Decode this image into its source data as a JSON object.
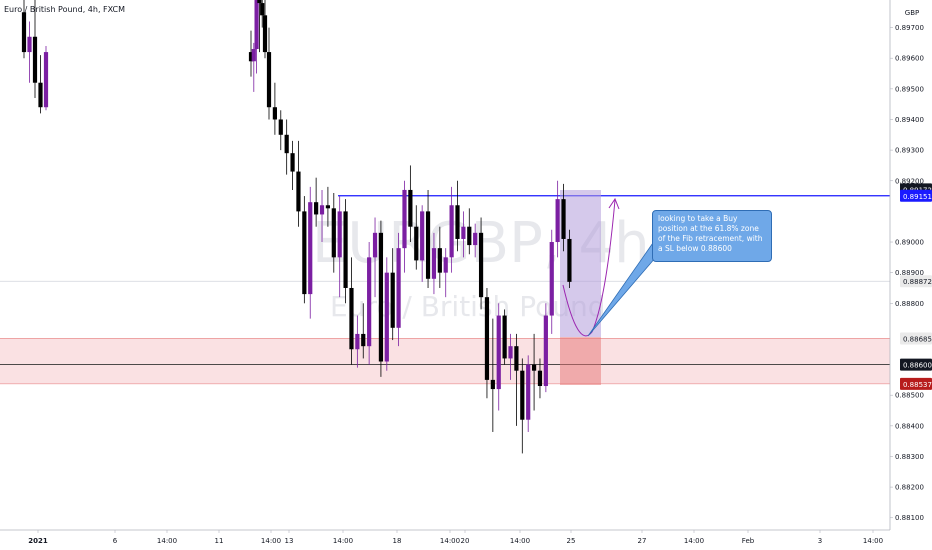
{
  "header": {
    "symbol_line": "Euro / British Pound, 4h, FXCM"
  },
  "watermark": {
    "ticker": "EURGBP, 4h",
    "name": "Euro / British Pound"
  },
  "currency_label": "GBP",
  "annotation": {
    "text": "looking to take a Buy position at the 61.8% zone of the Fib retracement, with a SL below 0.88600"
  },
  "colors": {
    "bull_candle": "#7b1fa2",
    "bear_candle": "#000000",
    "resistance_line": "#1a1aff",
    "support_zone": "#f8d7da",
    "stop_zone": "#e57373",
    "target_zone": "#b39ddb",
    "callout_bg": "#6fa8e8"
  },
  "chart_data": {
    "type": "candlestick",
    "timeframe": "4h",
    "y_axis": {
      "ylim": [
        0.8806,
        0.8979
      ],
      "ticks": [
        "0.89700",
        "0.89600",
        "0.89500",
        "0.89400",
        "0.89300",
        "0.89200",
        "0.89000",
        "0.88900",
        "0.88800",
        "0.88500",
        "0.88400",
        "0.88300",
        "0.88200",
        "0.88100"
      ]
    },
    "x_axis": {
      "ticks": [
        "2021",
        "6",
        "14:00",
        "11",
        "14:00",
        "13",
        "14:00",
        "18",
        "14:00",
        "20",
        "14:00",
        "25",
        "27",
        "14:00",
        "Feb",
        "3",
        "14:00"
      ]
    },
    "price_labels": [
      {
        "value": "0.89172",
        "style": "dark"
      },
      {
        "value": "0.89151",
        "style": "blue"
      },
      {
        "value": "0.88872",
        "style": "light"
      },
      {
        "value": "0.88685",
        "style": "light"
      },
      {
        "value": "0.88600",
        "style": "dark"
      },
      {
        "value": "0.88537",
        "style": "red"
      }
    ],
    "levels": {
      "resistance": 0.89151,
      "last_price": 0.88872,
      "zone_top": 0.88685,
      "zone_mid": 0.886,
      "zone_bottom": 0.88537
    },
    "candles": [
      {
        "o": 0.8975,
        "h": 0.8982,
        "l": 0.896,
        "c": 0.8962
      },
      {
        "o": 0.8962,
        "h": 0.8972,
        "l": 0.8952,
        "c": 0.8967
      },
      {
        "o": 0.8967,
        "h": 0.8982,
        "l": 0.8947,
        "c": 0.8952
      },
      {
        "o": 0.8952,
        "h": 0.8961,
        "l": 0.8942,
        "c": 0.8944
      },
      {
        "o": 0.8944,
        "h": 0.8964,
        "l": 0.8943,
        "c": 0.8962
      },
      {
        "o": 0.8962,
        "h": 0.8969,
        "l": 0.8954,
        "c": 0.8959
      },
      {
        "o": 0.8959,
        "h": 0.8965,
        "l": 0.8949,
        "c": 0.8963
      },
      {
        "o": 0.8963,
        "h": 0.8982,
        "l": 0.8955,
        "c": 0.898
      },
      {
        "o": 0.898,
        "h": 0.8982,
        "l": 0.8962,
        "c": 0.8978
      },
      {
        "o": 0.8978,
        "h": 0.8982,
        "l": 0.897,
        "c": 0.8974
      },
      {
        "o": 0.8974,
        "h": 0.898,
        "l": 0.896,
        "c": 0.8962
      },
      {
        "o": 0.8962,
        "h": 0.897,
        "l": 0.894,
        "c": 0.8944
      },
      {
        "o": 0.8944,
        "h": 0.8952,
        "l": 0.8935,
        "c": 0.894
      },
      {
        "o": 0.894,
        "h": 0.8943,
        "l": 0.893,
        "c": 0.8935
      },
      {
        "o": 0.8935,
        "h": 0.894,
        "l": 0.8922,
        "c": 0.8929
      },
      {
        "o": 0.8929,
        "h": 0.8933,
        "l": 0.8917,
        "c": 0.8923
      },
      {
        "o": 0.8923,
        "h": 0.8933,
        "l": 0.8905,
        "c": 0.891
      },
      {
        "o": 0.891,
        "h": 0.8915,
        "l": 0.888,
        "c": 0.8883
      },
      {
        "o": 0.8883,
        "h": 0.8918,
        "l": 0.8875,
        "c": 0.8913
      },
      {
        "o": 0.8913,
        "h": 0.8921,
        "l": 0.8905,
        "c": 0.8909
      },
      {
        "o": 0.8909,
        "h": 0.8917,
        "l": 0.89,
        "c": 0.8912
      },
      {
        "o": 0.8912,
        "h": 0.8918,
        "l": 0.8905,
        "c": 0.8911
      },
      {
        "o": 0.8911,
        "h": 0.8916,
        "l": 0.889,
        "c": 0.8895
      },
      {
        "o": 0.8895,
        "h": 0.8915,
        "l": 0.8882,
        "c": 0.891
      },
      {
        "o": 0.891,
        "h": 0.8914,
        "l": 0.888,
        "c": 0.8885
      },
      {
        "o": 0.8885,
        "h": 0.8895,
        "l": 0.886,
        "c": 0.8865
      },
      {
        "o": 0.8865,
        "h": 0.8876,
        "l": 0.8859,
        "c": 0.887
      },
      {
        "o": 0.887,
        "h": 0.888,
        "l": 0.8862,
        "c": 0.8866
      },
      {
        "o": 0.8866,
        "h": 0.89,
        "l": 0.886,
        "c": 0.8895
      },
      {
        "o": 0.8895,
        "h": 0.8908,
        "l": 0.8882,
        "c": 0.8903
      },
      {
        "o": 0.8903,
        "h": 0.8907,
        "l": 0.8856,
        "c": 0.8861
      },
      {
        "o": 0.8861,
        "h": 0.8895,
        "l": 0.8858,
        "c": 0.889
      },
      {
        "o": 0.889,
        "h": 0.8898,
        "l": 0.8868,
        "c": 0.8872
      },
      {
        "o": 0.8872,
        "h": 0.8903,
        "l": 0.8866,
        "c": 0.8898
      },
      {
        "o": 0.8898,
        "h": 0.892,
        "l": 0.889,
        "c": 0.8917
      },
      {
        "o": 0.8917,
        "h": 0.8925,
        "l": 0.89,
        "c": 0.8905
      },
      {
        "o": 0.8905,
        "h": 0.8912,
        "l": 0.8891,
        "c": 0.8894
      },
      {
        "o": 0.8894,
        "h": 0.8912,
        "l": 0.8887,
        "c": 0.891
      },
      {
        "o": 0.891,
        "h": 0.8917,
        "l": 0.8885,
        "c": 0.8888
      },
      {
        "o": 0.8888,
        "h": 0.8903,
        "l": 0.8883,
        "c": 0.8898
      },
      {
        "o": 0.8898,
        "h": 0.8905,
        "l": 0.8885,
        "c": 0.889
      },
      {
        "o": 0.889,
        "h": 0.8898,
        "l": 0.8882,
        "c": 0.8895
      },
      {
        "o": 0.8895,
        "h": 0.8918,
        "l": 0.889,
        "c": 0.8912
      },
      {
        "o": 0.8912,
        "h": 0.892,
        "l": 0.8897,
        "c": 0.8901
      },
      {
        "o": 0.8901,
        "h": 0.891,
        "l": 0.8895,
        "c": 0.8905
      },
      {
        "o": 0.8905,
        "h": 0.8911,
        "l": 0.8896,
        "c": 0.8899
      },
      {
        "o": 0.8899,
        "h": 0.8906,
        "l": 0.8895,
        "c": 0.8903
      },
      {
        "o": 0.8903,
        "h": 0.8908,
        "l": 0.8878,
        "c": 0.8882
      },
      {
        "o": 0.8882,
        "h": 0.8885,
        "l": 0.8849,
        "c": 0.8855
      },
      {
        "o": 0.8855,
        "h": 0.8875,
        "l": 0.8838,
        "c": 0.8852
      },
      {
        "o": 0.8852,
        "h": 0.888,
        "l": 0.8845,
        "c": 0.8876
      },
      {
        "o": 0.8876,
        "h": 0.8878,
        "l": 0.886,
        "c": 0.8862
      },
      {
        "o": 0.8862,
        "h": 0.887,
        "l": 0.8855,
        "c": 0.8866
      },
      {
        "o": 0.8866,
        "h": 0.887,
        "l": 0.884,
        "c": 0.8858
      },
      {
        "o": 0.8858,
        "h": 0.8862,
        "l": 0.8831,
        "c": 0.8842
      },
      {
        "o": 0.8842,
        "h": 0.8863,
        "l": 0.8838,
        "c": 0.886
      },
      {
        "o": 0.886,
        "h": 0.887,
        "l": 0.8845,
        "c": 0.8858
      },
      {
        "o": 0.8858,
        "h": 0.8862,
        "l": 0.8849,
        "c": 0.8853
      },
      {
        "o": 0.8853,
        "h": 0.888,
        "l": 0.8851,
        "c": 0.8876
      },
      {
        "o": 0.8876,
        "h": 0.8904,
        "l": 0.887,
        "c": 0.89
      },
      {
        "o": 0.89,
        "h": 0.892,
        "l": 0.8895,
        "c": 0.8914
      },
      {
        "o": 0.8914,
        "h": 0.8919,
        "l": 0.8897,
        "c": 0.8901
      },
      {
        "o": 0.8901,
        "h": 0.8904,
        "l": 0.8885,
        "c": 0.8887
      }
    ]
  }
}
